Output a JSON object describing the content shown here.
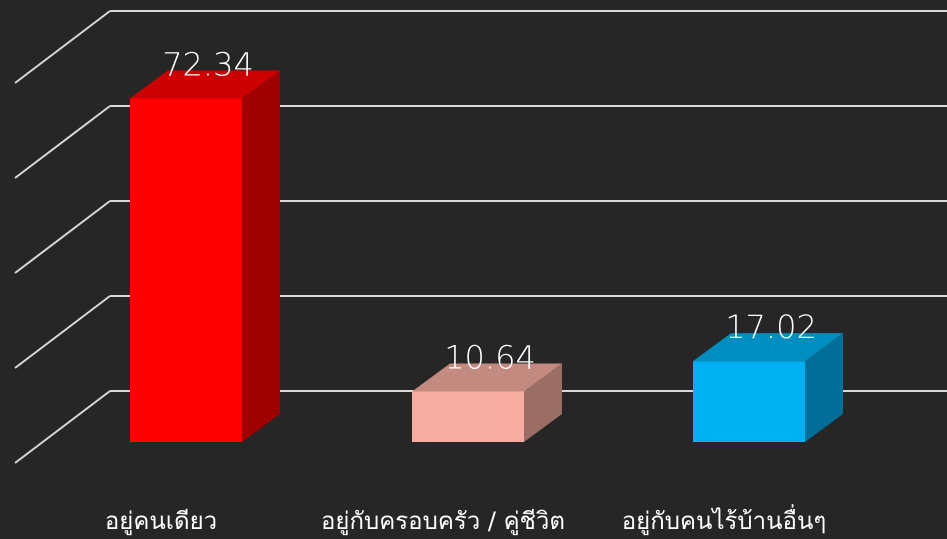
{
  "chart_data": {
    "type": "bar3d",
    "categories": [
      "อยู่คนเดียว",
      "อยู่กับครอบครัว / คู่ชีวิต",
      "อยู่กับคนไร้บ้านอื่นๆ"
    ],
    "values": [
      72.34,
      10.64,
      17.02
    ],
    "colors": [
      "#ff0000",
      "#f4ada0",
      "#00b0f0"
    ],
    "ylim": [
      0,
      80
    ],
    "yticks": [
      0,
      20,
      40,
      60,
      80
    ],
    "grid": true
  }
}
